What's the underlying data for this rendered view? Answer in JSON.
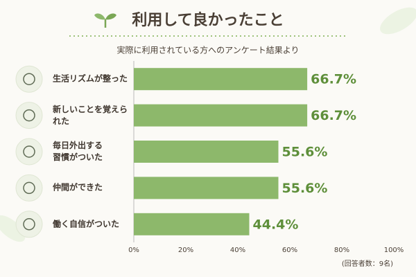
{
  "title": "利用して良かったこと",
  "chart_data": {
    "type": "bar",
    "orientation": "horizontal",
    "subtitle": "実際に利用されている方へのアンケート結果より",
    "categories": [
      "生活リズムが整った",
      "新しいことを覚えられた",
      "毎日外出する\n習慣がついた",
      "仲間ができた",
      "働く自信がついた"
    ],
    "values": [
      66.7,
      66.7,
      55.6,
      55.6,
      44.4
    ],
    "value_labels": [
      "66.7%",
      "66.7%",
      "55.6%",
      "55.6%",
      "44.4%"
    ],
    "color": "#8db86b",
    "xlim": [
      0,
      100
    ],
    "xticks": [
      {
        "value": 0,
        "label": "0%"
      },
      {
        "value": 20,
        "label": "20%"
      },
      {
        "value": 40,
        "label": "40%"
      },
      {
        "value": 60,
        "label": "60%"
      },
      {
        "value": 80,
        "label": "80%"
      },
      {
        "value": 100,
        "label": "100%"
      }
    ],
    "grid": false,
    "note": "(回答者数：9名)"
  }
}
